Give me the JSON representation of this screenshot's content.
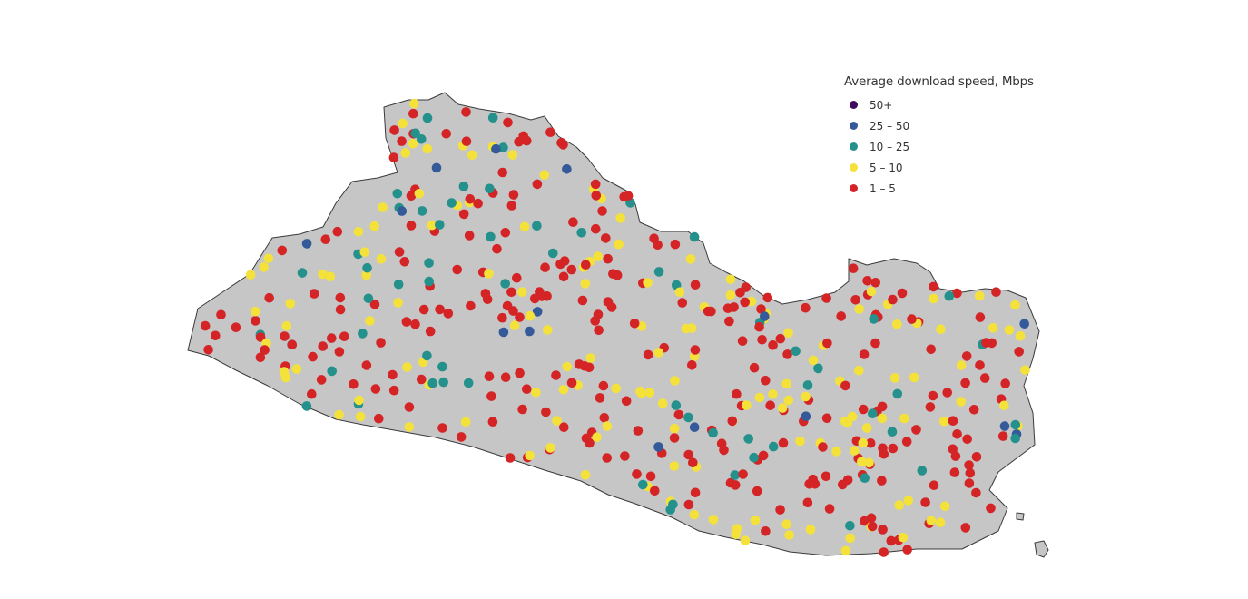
{
  "legend": {
    "title": "Average download speed,  Mbps",
    "items": [
      {
        "label": "50+",
        "color": "#3d0a5c"
      },
      {
        "label": "25 – 50",
        "color": "#345a9a"
      },
      {
        "label": "10 – 25",
        "color": "#24918c"
      },
      {
        "label": "5 – 10",
        "color": "#f4e23a"
      },
      {
        "label": "1 – 5",
        "color": "#d42426"
      }
    ]
  },
  "map_data": {
    "region": "El Salvador",
    "land_color": "#c6c6c6",
    "border_color": "#3a3a3a",
    "categories": [
      "50+",
      "25 – 50",
      "10 – 25",
      "5 – 10",
      "1 – 5"
    ]
  }
}
